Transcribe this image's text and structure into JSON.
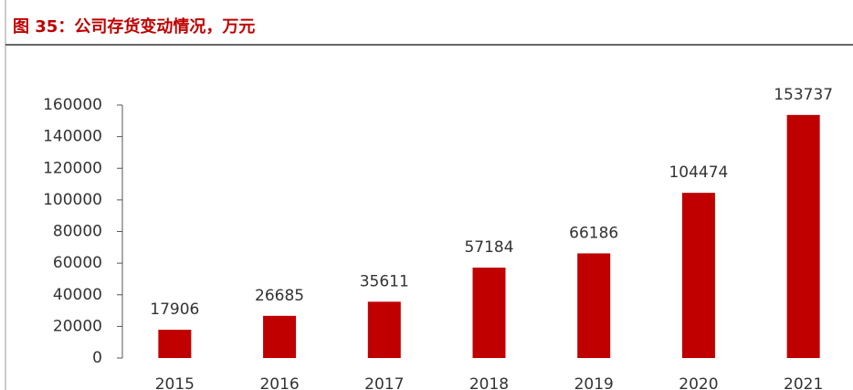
{
  "chart_data": {
    "type": "bar",
    "title": "图 35：公司存货变动情况，万元",
    "categories": [
      "2015",
      "2016",
      "2017",
      "2018",
      "2019",
      "2020",
      "2021"
    ],
    "values": [
      17906,
      26685,
      35611,
      57184,
      66186,
      104474,
      153737
    ],
    "color": "#c00000",
    "ylim": [
      0,
      160000
    ],
    "yticks": [
      0,
      20000,
      40000,
      60000,
      80000,
      100000,
      120000,
      140000,
      160000
    ],
    "grid": false
  }
}
